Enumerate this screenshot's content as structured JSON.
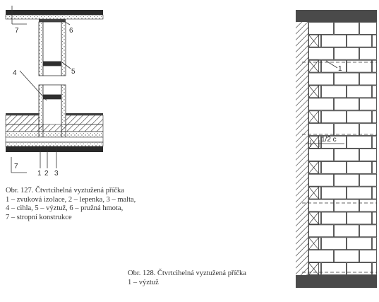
{
  "figure127": {
    "labels": {
      "l1": "1",
      "l2": "2",
      "l3": "3",
      "l4": "4",
      "l5": "5",
      "l6": "6",
      "l7_top": "7",
      "l7_bottom": "7"
    },
    "caption": {
      "title": "Obr. 127.  Čtvrtcihelná vyztužená příčka",
      "lines": [
        "1 – zvuková izolace, 2 – lepenka, 3 – malta,",
        "4 – cihla, 5 – výztuž, 6 – pružná hmota,",
        "7 – stropní konstrukce"
      ]
    }
  },
  "figure128": {
    "labels": {
      "l1": "1",
      "half_brick": "1/2 c"
    },
    "caption": {
      "title": "Obr. 128.  Čtvrtcihelná vyztužená příčka",
      "lines": [
        "1 – výztuž"
      ]
    }
  }
}
